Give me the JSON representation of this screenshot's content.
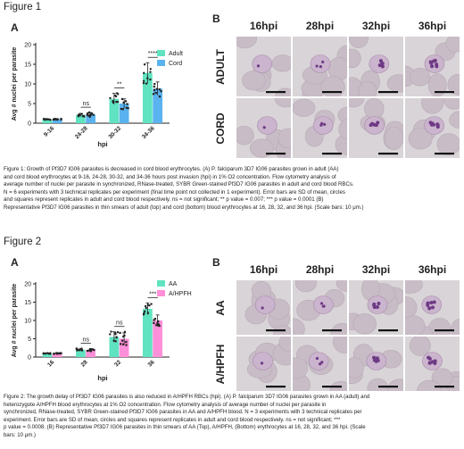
{
  "figure1": {
    "title": "Figure 1",
    "panelA": {
      "letter": "A",
      "chart_data": {
        "type": "bar",
        "categories": [
          "9-16",
          "24-28",
          "30-32",
          "34-36"
        ],
        "series": [
          {
            "name": "Adult",
            "color": "#5fe3c0",
            "values": [
              1.0,
              2.1,
              6.2,
              12.8
            ],
            "sd": [
              0.15,
              0.4,
              1.4,
              2.6
            ]
          },
          {
            "name": "Cord",
            "color": "#5ab2ef",
            "values": [
              1.0,
              2.2,
              5.0,
              8.8
            ],
            "sd": [
              0.1,
              0.5,
              1.2,
              1.7
            ]
          }
        ],
        "xlabel": "hpi",
        "ylabel": "Avg # nuclei per parasite",
        "ylim": [
          0,
          20
        ],
        "yticks": [
          "0",
          "5",
          "10",
          "15",
          "20"
        ],
        "significance": [
          "",
          "ns",
          "**",
          "****"
        ],
        "legend_placement": "top-right"
      }
    },
    "panelB": {
      "letter": "B",
      "col_labels": [
        "16hpi",
        "28hpi",
        "32hpi",
        "36hpi"
      ],
      "row_labels": [
        "ADULT",
        "CORD"
      ]
    },
    "caption": [
      "Figure 1: Growth of Pf3D7 IG06 parasites is decreased in cord blood erythrocytes. (A) P. falciparum 3D7 IG06 parasites grown in adult (AA)",
      "and cord blood erythrocytes at 9-16, 24-28, 30-32, and 34-36 hours post invasion (hpi) in 1% O2 concentration. Flow cytometry analysis of",
      "average number of nuclei per parasite in synchronized, RNase-treated, SYBR Green-stained Pf3D7 IG06 parasites in adult and cord blood RBCs.",
      "N = 6 experiments with 3 technical replicates per experiment (final time point not collected in 1 experiment). Error bars are SD of mean, circles",
      "and squares represent replicates in adult and cord blood respectively. ns = not significant; ** p value = 0.007; *** p value = 0.0001 (B)",
      "Representative Pf3D7 IG06 parasites in thin smears of adult (top) and cord (bottom) blood erythrocytes at 16, 28, 32, and 36 hpi. (Scale bars: 10 μm.)"
    ]
  },
  "figure2": {
    "title": "Figure 2",
    "panelA": {
      "letter": "A",
      "chart_data": {
        "type": "bar",
        "categories": [
          "16",
          "28",
          "32",
          "36"
        ],
        "series": [
          {
            "name": "AA",
            "color": "#5fe3c0",
            "values": [
              1.0,
              2.0,
              5.5,
              13.2
            ],
            "sd": [
              0.1,
              0.3,
              1.4,
              1.6
            ]
          },
          {
            "name": "A/HPFH",
            "color": "#ff8fd8",
            "values": [
              1.0,
              1.9,
              5.0,
              10.0
            ],
            "sd": [
              0.1,
              0.3,
              1.6,
              1.5
            ]
          }
        ],
        "xlabel": "hpi",
        "ylabel": "Avg # nuclei per parasite",
        "ylim": [
          0,
          20
        ],
        "yticks": [
          "0",
          "5",
          "10",
          "15",
          "20"
        ],
        "significance": [
          "",
          "ns",
          "ns",
          "***"
        ],
        "legend_placement": "top-right"
      }
    },
    "panelB": {
      "letter": "B",
      "col_labels": [
        "16hpi",
        "28hpi",
        "32hpi",
        "36hpi"
      ],
      "row_labels": [
        "AA",
        "A/HPFH"
      ]
    },
    "caption": [
      "Figure 2: The growth delay of Pf3D7 IG06 parasites is also reduced in A/HPFH RBCs (hpi). (A) P. falciparum 3D7 IG06 parasites grown in AA (adult) and",
      "heterozygote A/HPFH blood erythrocytes at 1% O2 concentration.  Flow cytometry analysis of average number of nuclei per parasite in",
      "synchronized, RNase-treated, SYBR Green-stained Pf3D7 IG06 parasites in AA and A/HPFH blood. N = 3 experiments with 3 technical replicates per",
      "experiment. Error bars are SD of mean, circles and squares represent replicates in adult and cord blood respectively. ns = not significant; ***",
      "p value = 0.0008. (B) Representative Pf3D7 IG06 parasites in thin smears of AA (Top), A/HPFH, (Bottom) erythrocytes at 16, 28, 32, and 36 hpi. (Scale",
      "bars: 10 μm.)"
    ]
  }
}
